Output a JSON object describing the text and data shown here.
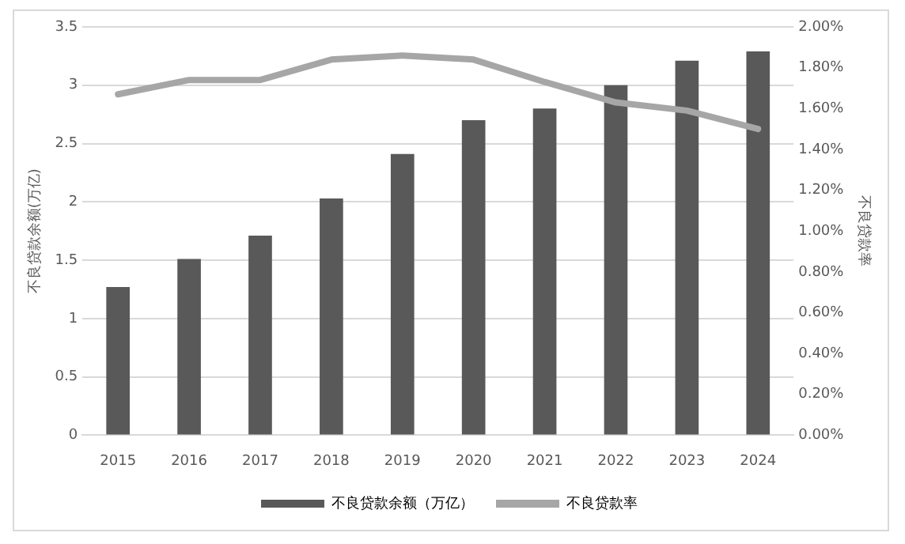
{
  "chart_data": {
    "type": "bar",
    "ylabel": "不良贷款余额(万亿)",
    "y2label": "不良贷款率",
    "categories": [
      "2015",
      "2016",
      "2017",
      "2018",
      "2019",
      "2020",
      "2021",
      "2022",
      "2023",
      "2024"
    ],
    "series": [
      {
        "name": "不良贷款余额（万亿）",
        "color": "#595959",
        "values": [
          1.27,
          1.51,
          1.71,
          2.03,
          2.41,
          2.7,
          2.8,
          3.0,
          3.21,
          3.29
        ]
      },
      {
        "name": "不良贷款率",
        "type": "line",
        "axis": "y2",
        "color": "#a6a6a6",
        "values": [
          1.67,
          1.74,
          1.74,
          1.84,
          1.86,
          1.84,
          1.73,
          1.63,
          1.59,
          1.5
        ]
      }
    ],
    "ylim": [
      0,
      3.5
    ],
    "yticks": [
      0,
      {
        "value": 0.5,
        "label": "0.5"
      },
      1,
      {
        "value": 1.5,
        "label": "1.5"
      },
      2,
      {
        "value": 2.5,
        "label": "2.5"
      },
      3,
      {
        "value": 3.5,
        "label": "3.5"
      }
    ],
    "y2lim": [
      0,
      2
    ],
    "y2ticks": [
      {
        "value": 0,
        "label": "0.00%"
      },
      {
        "value": 0.2,
        "label": "0.20%"
      },
      {
        "value": 0.4,
        "label": "0.40%"
      },
      {
        "value": 0.6,
        "label": "0.60%"
      },
      {
        "value": 0.8,
        "label": "0.80%"
      },
      {
        "value": 1,
        "label": "1.00%"
      },
      {
        "value": 1.2,
        "label": "1.20%"
      },
      {
        "value": 1.4,
        "label": "1.40%"
      },
      {
        "value": 1.6,
        "label": "1.60%"
      },
      {
        "value": 1.8,
        "label": "1.80%"
      },
      {
        "value": 2,
        "label": "2.00%"
      }
    ],
    "grid": "y",
    "legend": "bottom",
    "marker": "none",
    "line_style": "solid"
  }
}
